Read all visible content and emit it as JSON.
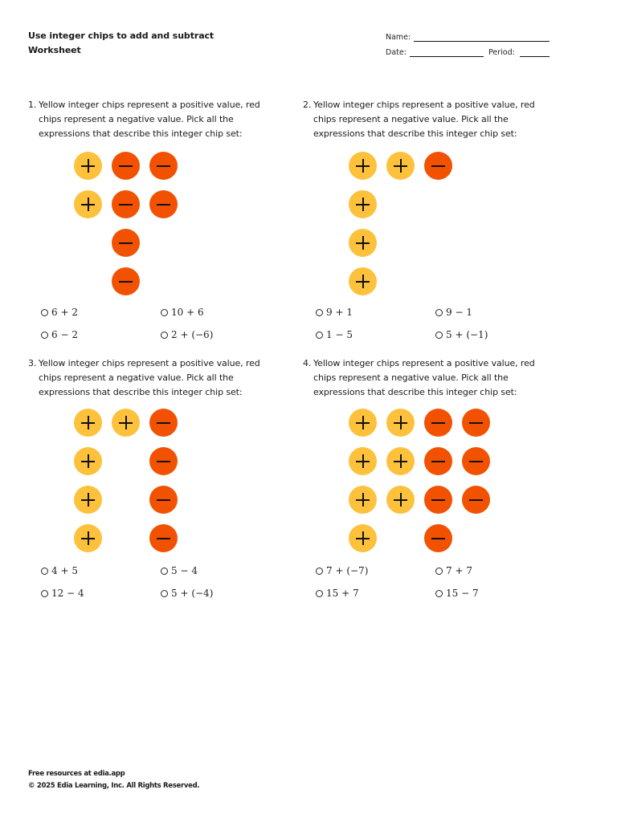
{
  "header": {
    "title_line1": "Use integer chips to add and subtract",
    "title_line2": "Worksheet",
    "name_label": "Name:",
    "date_label": "Date:",
    "period_label": "Period:"
  },
  "questions": [
    {
      "number": "1.",
      "text": "Yellow integer chips represent a positive value, red chips represent a negative value. Pick all the expressions that describe this integer chip set:",
      "chips": [
        {
          "type": "positive",
          "col": 0,
          "row": 0
        },
        {
          "type": "negative",
          "col": 1,
          "row": 0
        },
        {
          "type": "negative",
          "col": 2,
          "row": 0
        },
        {
          "type": "positive",
          "col": 0,
          "row": 1
        },
        {
          "type": "negative",
          "col": 1,
          "row": 1
        },
        {
          "type": "negative",
          "col": 2,
          "row": 1
        },
        {
          "type": "negative",
          "col": 1,
          "row": 2
        },
        {
          "type": "negative",
          "col": 1,
          "row": 3
        }
      ],
      "options": [
        "6 + 2",
        "10 + 6",
        "6 − 2",
        "2 + (−6)"
      ]
    },
    {
      "number": "2.",
      "text": "Yellow integer chips represent a positive value, red chips represent a negative value. Pick all the expressions that describe this integer chip set:",
      "chips": [
        {
          "type": "positive",
          "col": 0,
          "row": 0
        },
        {
          "type": "positive",
          "col": 1,
          "row": 0
        },
        {
          "type": "negative",
          "col": 2,
          "row": 0
        },
        {
          "type": "positive",
          "col": 0,
          "row": 1
        },
        {
          "type": "positive",
          "col": 0,
          "row": 2
        },
        {
          "type": "positive",
          "col": 0,
          "row": 3
        }
      ],
      "options": [
        "9 + 1",
        "9 − 1",
        "1 − 5",
        "5 + (−1)"
      ]
    },
    {
      "number": "3.",
      "text": "Yellow integer chips represent a positive value, red chips represent a negative value. Pick all the expressions that describe this integer chip set:",
      "chips": [
        {
          "type": "positive",
          "col": 0,
          "row": 0
        },
        {
          "type": "positive",
          "col": 1,
          "row": 0
        },
        {
          "type": "negative",
          "col": 2,
          "row": 0
        },
        {
          "type": "positive",
          "col": 0,
          "row": 1
        },
        {
          "type": "negative",
          "col": 2,
          "row": 1
        },
        {
          "type": "positive",
          "col": 0,
          "row": 2
        },
        {
          "type": "negative",
          "col": 2,
          "row": 2
        },
        {
          "type": "positive",
          "col": 0,
          "row": 3
        },
        {
          "type": "negative",
          "col": 2,
          "row": 3
        }
      ],
      "options": [
        "4 + 5",
        "5 − 4",
        "12 − 4",
        "5 + (−4)"
      ]
    },
    {
      "number": "4.",
      "text": "Yellow integer chips represent a positive value, red chips represent a negative value. Pick all the expressions that describe this integer chip set:",
      "chips": [
        {
          "type": "positive",
          "col": 0,
          "row": 0
        },
        {
          "type": "positive",
          "col": 1,
          "row": 0
        },
        {
          "type": "negative",
          "col": 2,
          "row": 0
        },
        {
          "type": "negative",
          "col": 3,
          "row": 0
        },
        {
          "type": "positive",
          "col": 0,
          "row": 1
        },
        {
          "type": "positive",
          "col": 1,
          "row": 1
        },
        {
          "type": "negative",
          "col": 2,
          "row": 1
        },
        {
          "type": "negative",
          "col": 3,
          "row": 1
        },
        {
          "type": "positive",
          "col": 0,
          "row": 2
        },
        {
          "type": "positive",
          "col": 1,
          "row": 2
        },
        {
          "type": "negative",
          "col": 2,
          "row": 2
        },
        {
          "type": "negative",
          "col": 3,
          "row": 2
        },
        {
          "type": "positive",
          "col": 0,
          "row": 3
        },
        {
          "type": "negative",
          "col": 2,
          "row": 3
        }
      ],
      "options": [
        "7 + (−7)",
        "7 + 7",
        "15 + 7",
        "15 − 7"
      ]
    }
  ],
  "colors": {
    "positive_chip": "#FDC13C",
    "negative_chip": "#F25100"
  },
  "footer": {
    "line1": "Free resources at edia.app",
    "line2": "© 2025 Edia Learning, Inc. All Rights Reserved."
  }
}
